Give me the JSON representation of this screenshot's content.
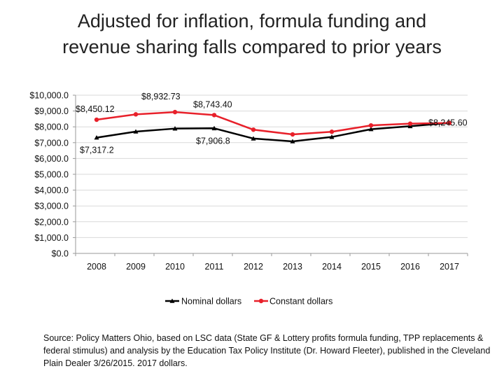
{
  "title": {
    "line1": "Adjusted for inflation, formula funding and",
    "line2": "revenue sharing falls compared to prior years"
  },
  "source_note": "Source: Policy Matters Ohio, based on LSC data (State GF & Lottery profits formula funding, TPP replacements & federal stimulus) and analysis by the Education Tax Policy Institute (Dr. Howard Fleeter), published in the Cleveland Plain Dealer 3/26/2015. 2017 dollars.",
  "chart_data": {
    "type": "line",
    "title": "Adjusted for inflation, formula funding and revenue sharing falls compared to prior years",
    "xlabel": "",
    "ylabel": "",
    "x": [
      "2008",
      "2009",
      "2010",
      "2011",
      "2012",
      "2013",
      "2014",
      "2015",
      "2016",
      "2017"
    ],
    "ylim": [
      0,
      10000
    ],
    "y_ticks": [
      0,
      1000,
      2000,
      3000,
      4000,
      5000,
      6000,
      7000,
      8000,
      9000,
      10000
    ],
    "y_tick_labels": [
      "$0.0",
      "$1,000.0",
      "$2,000.0",
      "$3,000.0",
      "$4,000.0",
      "$5,000.0",
      "$6,000.0",
      "$7,000.0",
      "$8,000.0",
      "$9,000.0",
      "$10,000.0"
    ],
    "grid": true,
    "legend_position": "bottom",
    "series": [
      {
        "name": "Nominal dollars",
        "color": "#000000",
        "marker": "triangle",
        "values": [
          7317.2,
          7700,
          7890,
          7906.8,
          7260,
          7080,
          7360,
          7850,
          8040,
          8245.6
        ]
      },
      {
        "name": "Constant dollars",
        "color": "#e8202a",
        "marker": "circle",
        "values": [
          8450.12,
          8790,
          8932.73,
          8743.4,
          7820,
          7520,
          7690,
          8090,
          8200,
          8245.6
        ]
      }
    ],
    "data_labels": [
      {
        "series": 1,
        "index": 0,
        "text": "$8,450.12"
      },
      {
        "series": 1,
        "index": 2,
        "text": "$8,932.73"
      },
      {
        "series": 1,
        "index": 3,
        "text": "$8,743.40"
      },
      {
        "series": 1,
        "index": 9,
        "text": "$8,245.60"
      },
      {
        "series": 0,
        "index": 0,
        "text": "$7,317.2"
      },
      {
        "series": 0,
        "index": 3,
        "text": "$7,906.8"
      }
    ]
  }
}
